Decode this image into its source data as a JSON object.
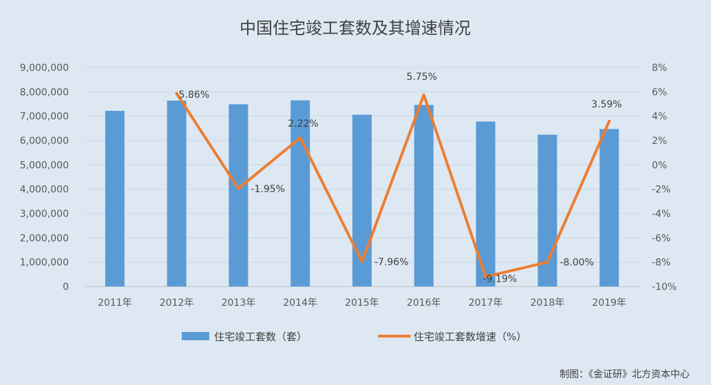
{
  "chart_data": {
    "type": "bar",
    "title": "中国住宅竣工套数及其增速情况",
    "categories": [
      "2011年",
      "2012年",
      "2013年",
      "2014年",
      "2015年",
      "2016年",
      "2017年",
      "2018年",
      "2019年"
    ],
    "series": [
      {
        "name": "住宅竣工套数（套）",
        "type": "bar",
        "axis": "left",
        "color": "#5b9bd5",
        "values": [
          7220000,
          7640000,
          7490000,
          7650000,
          7060000,
          7460000,
          6780000,
          6240000,
          6470000
        ]
      },
      {
        "name": "住宅竣工套数增速（%）",
        "type": "line",
        "axis": "right",
        "color": "#ed7d31",
        "values": [
          null,
          5.86,
          -1.95,
          2.22,
          -7.96,
          5.75,
          -9.19,
          -8.0,
          3.59
        ],
        "labels": [
          "",
          "5.86%",
          "-1.95%",
          "2.22%",
          "-7.96%",
          "5.75%",
          "-9.19%",
          "-8.00%",
          "3.59%"
        ]
      }
    ],
    "y_left": {
      "ylim": [
        0,
        9000000
      ],
      "ticks": [
        0,
        1000000,
        2000000,
        3000000,
        4000000,
        5000000,
        6000000,
        7000000,
        8000000,
        9000000
      ],
      "tick_labels": [
        "0",
        "1,000,000",
        "2,000,000",
        "3,000,000",
        "4,000,000",
        "5,000,000",
        "6,000,000",
        "7,000,000",
        "8,000,000",
        "9,000,000"
      ]
    },
    "y_right": {
      "ylim": [
        -10,
        8
      ],
      "ticks": [
        -10,
        -8,
        -6,
        -4,
        -2,
        0,
        2,
        4,
        6,
        8
      ],
      "tick_labels": [
        "-10%",
        "-8%",
        "-6%",
        "-4%",
        "-2%",
        "0%",
        "2%",
        "4%",
        "6%",
        "8%"
      ]
    },
    "legend_position": "bottom",
    "grid": true
  },
  "source_note": "制图：《金证研》北方资本中心"
}
